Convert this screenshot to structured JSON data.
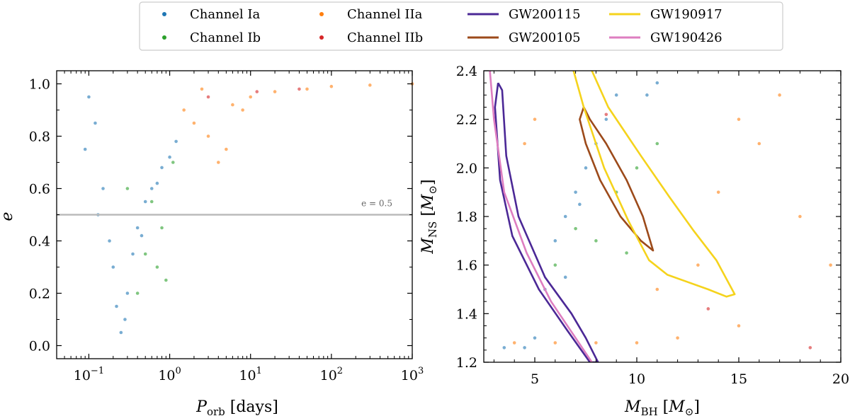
{
  "legend": {
    "items": [
      {
        "label": "Channel Ia",
        "kind": "dot",
        "color": "#1f77b4"
      },
      {
        "label": "Channel Ib",
        "kind": "dot",
        "color": "#2ca02c"
      },
      {
        "label": "Channel IIa",
        "kind": "dot",
        "color": "#ff7f0e"
      },
      {
        "label": "Channel IIb",
        "kind": "dot",
        "color": "#d62728"
      },
      {
        "label": "GW200115",
        "kind": "line",
        "color": "#4b2896"
      },
      {
        "label": "GW200105",
        "kind": "line",
        "color": "#9c4a1a"
      },
      {
        "label": "GW190917",
        "kind": "line",
        "color": "#f5d31c"
      },
      {
        "label": "GW190426",
        "kind": "line",
        "color": "#de7ec0"
      }
    ]
  },
  "chart_data": [
    {
      "type": "scatter",
      "xscale": "log",
      "xlim": [
        0.04,
        1000
      ],
      "ylim": [
        -0.05,
        1.05
      ],
      "xlabel": "P_orb [days]",
      "ylabel": "e",
      "xticks": [
        {
          "value": 0.1,
          "base": "10",
          "exp": "−1"
        },
        {
          "value": 1,
          "base": "10",
          "exp": "0"
        },
        {
          "value": 10,
          "base": "10",
          "exp": "1"
        },
        {
          "value": 100,
          "base": "10",
          "exp": "2"
        },
        {
          "value": 1000,
          "base": "10",
          "exp": "3"
        }
      ],
      "yticks": [
        {
          "value": 0.0,
          "label": "0.0"
        },
        {
          "value": 0.2,
          "label": "0.2"
        },
        {
          "value": 0.4,
          "label": "0.4"
        },
        {
          "value": 0.6,
          "label": "0.6"
        },
        {
          "value": 0.8,
          "label": "0.8"
        },
        {
          "value": 1.0,
          "label": "1.0"
        }
      ],
      "reference_line": {
        "y": 0.5,
        "label": "e = 0.5",
        "color": "#bbbbbb"
      },
      "series": [
        {
          "name": "Channel Ia",
          "color": "#1f77b4",
          "points": [
            [
              0.1,
              0.95
            ],
            [
              0.12,
              0.85
            ],
            [
              0.15,
              0.6
            ],
            [
              0.18,
              0.4
            ],
            [
              0.2,
              0.3
            ],
            [
              0.22,
              0.15
            ],
            [
              0.25,
              0.05
            ],
            [
              0.3,
              0.2
            ],
            [
              0.35,
              0.35
            ],
            [
              0.4,
              0.45
            ],
            [
              0.5,
              0.55
            ],
            [
              0.6,
              0.6
            ],
            [
              0.8,
              0.68
            ],
            [
              1.0,
              0.72
            ],
            [
              0.09,
              0.75
            ],
            [
              0.13,
              0.5
            ],
            [
              0.28,
              0.1
            ],
            [
              0.45,
              0.42
            ],
            [
              0.7,
              0.62
            ],
            [
              1.2,
              0.78
            ]
          ]
        },
        {
          "name": "Channel Ib",
          "color": "#2ca02c",
          "points": [
            [
              0.3,
              0.6
            ],
            [
              0.5,
              0.35
            ],
            [
              0.7,
              0.3
            ],
            [
              0.9,
              0.25
            ],
            [
              1.1,
              0.7
            ],
            [
              0.6,
              0.55
            ],
            [
              0.4,
              0.2
            ],
            [
              0.8,
              0.45
            ]
          ]
        },
        {
          "name": "Channel IIa",
          "color": "#ff7f0e",
          "points": [
            [
              1.5,
              0.9
            ],
            [
              2,
              0.85
            ],
            [
              3,
              0.8
            ],
            [
              4,
              0.7
            ],
            [
              5,
              0.75
            ],
            [
              8,
              0.9
            ],
            [
              10,
              0.95
            ],
            [
              20,
              0.97
            ],
            [
              50,
              0.98
            ],
            [
              100,
              0.99
            ],
            [
              300,
              0.995
            ],
            [
              1000,
              1.0
            ],
            [
              2.5,
              0.98
            ],
            [
              6,
              0.92
            ]
          ]
        },
        {
          "name": "Channel IIb",
          "color": "#d62728",
          "points": [
            [
              3,
              0.95
            ],
            [
              12,
              0.97
            ],
            [
              40,
              0.98
            ]
          ]
        }
      ]
    },
    {
      "type": "scatter",
      "xlim": [
        2.5,
        20
      ],
      "ylim": [
        1.2,
        2.4
      ],
      "xlabel": "M_BH [M_⊙]",
      "ylabel": "M_NS [M_⊙]",
      "xticks": [
        {
          "value": 5,
          "label": "5"
        },
        {
          "value": 10,
          "label": "10"
        },
        {
          "value": 15,
          "label": "15"
        },
        {
          "value": 20,
          "label": "20"
        }
      ],
      "yticks": [
        {
          "value": 1.2,
          "label": "1.2"
        },
        {
          "value": 1.4,
          "label": "1.4"
        },
        {
          "value": 1.6,
          "label": "1.6"
        },
        {
          "value": 1.8,
          "label": "1.8"
        },
        {
          "value": 2.0,
          "label": "2.0"
        },
        {
          "value": 2.2,
          "label": "2.2"
        },
        {
          "value": 2.4,
          "label": "2.4"
        }
      ],
      "series": [
        {
          "name": "Channel Ia",
          "color": "#1f77b4",
          "points": [
            [
              3.5,
              1.26
            ],
            [
              4.5,
              1.26
            ],
            [
              5.5,
              1.5
            ],
            [
              6,
              1.7
            ],
            [
              6.5,
              1.8
            ],
            [
              7,
              1.9
            ],
            [
              7.5,
              2.0
            ],
            [
              8,
              2.1
            ],
            [
              8.5,
              2.2
            ],
            [
              9,
              2.3
            ],
            [
              10.5,
              2.3
            ],
            [
              11,
              2.35
            ],
            [
              6.5,
              1.55
            ],
            [
              5,
              1.3
            ],
            [
              7.2,
              1.85
            ]
          ]
        },
        {
          "name": "Channel Ib",
          "color": "#2ca02c",
          "points": [
            [
              6,
              1.6
            ],
            [
              7,
              1.75
            ],
            [
              8,
              1.7
            ],
            [
              9,
              1.9
            ],
            [
              10,
              2.0
            ],
            [
              11,
              2.1
            ],
            [
              9.5,
              1.65
            ]
          ]
        },
        {
          "name": "Channel IIa",
          "color": "#ff7f0e",
          "points": [
            [
              4,
              1.28
            ],
            [
              6,
              1.28
            ],
            [
              8,
              1.28
            ],
            [
              10,
              1.28
            ],
            [
              12,
              1.3
            ],
            [
              13,
              1.6
            ],
            [
              14,
              1.9
            ],
            [
              15,
              2.2
            ],
            [
              16,
              2.1
            ],
            [
              17,
              2.3
            ],
            [
              18,
              1.8
            ],
            [
              19.5,
              1.6
            ],
            [
              5,
              2.2
            ],
            [
              4.5,
              2.1
            ],
            [
              11,
              1.5
            ],
            [
              15,
              1.35
            ]
          ]
        },
        {
          "name": "Channel IIb",
          "color": "#d62728",
          "points": [
            [
              8.5,
              2.22
            ],
            [
              13.5,
              1.42
            ],
            [
              18.5,
              1.26
            ]
          ]
        }
      ],
      "contours": [
        {
          "name": "GW200115",
          "color": "#4b2896",
          "points": [
            [
              3.2,
              2.35
            ],
            [
              3.4,
              2.32
            ],
            [
              3.6,
              2.05
            ],
            [
              4.2,
              1.8
            ],
            [
              5.5,
              1.55
            ],
            [
              6.8,
              1.4
            ],
            [
              7.5,
              1.3
            ],
            [
              8.1,
              1.2
            ],
            [
              7.7,
              1.2
            ],
            [
              6.6,
              1.33
            ],
            [
              5.2,
              1.5
            ],
            [
              3.9,
              1.72
            ],
            [
              3.3,
              1.95
            ],
            [
              3.05,
              2.25
            ],
            [
              3.2,
              2.35
            ]
          ]
        },
        {
          "name": "GW200105",
          "color": "#9c4a1a",
          "points": [
            [
              7.4,
              2.25
            ],
            [
              7.7,
              2.2
            ],
            [
              8.5,
              2.1
            ],
            [
              9.5,
              1.95
            ],
            [
              10.3,
              1.8
            ],
            [
              10.8,
              1.66
            ],
            [
              10.2,
              1.7
            ],
            [
              9.2,
              1.8
            ],
            [
              8.2,
              1.95
            ],
            [
              7.5,
              2.1
            ],
            [
              7.2,
              2.2
            ],
            [
              7.4,
              2.25
            ]
          ]
        },
        {
          "name": "GW190917",
          "color": "#f5d31c",
          "points": [
            [
              7.8,
              2.4
            ],
            [
              8.6,
              2.25
            ],
            [
              10.2,
              2.05
            ],
            [
              11.6,
              1.88
            ],
            [
              12.8,
              1.74
            ],
            [
              13.9,
              1.62
            ],
            [
              14.8,
              1.48
            ],
            [
              14.4,
              1.47
            ],
            [
              13.5,
              1.5
            ],
            [
              12.5,
              1.53
            ],
            [
              11.5,
              1.56
            ],
            [
              10.6,
              1.62
            ],
            [
              9.6,
              1.78
            ],
            [
              8.4,
              2.0
            ],
            [
              7.4,
              2.25
            ],
            [
              6.9,
              2.4
            ]
          ]
        },
        {
          "name": "GW190426",
          "color": "#de7ec0",
          "points": [
            [
              2.8,
              2.4
            ],
            [
              3.0,
              2.2
            ],
            [
              3.5,
              1.9
            ],
            [
              4.6,
              1.65
            ],
            [
              5.8,
              1.45
            ],
            [
              7.0,
              1.3
            ],
            [
              7.8,
              1.2
            ]
          ]
        }
      ]
    }
  ]
}
